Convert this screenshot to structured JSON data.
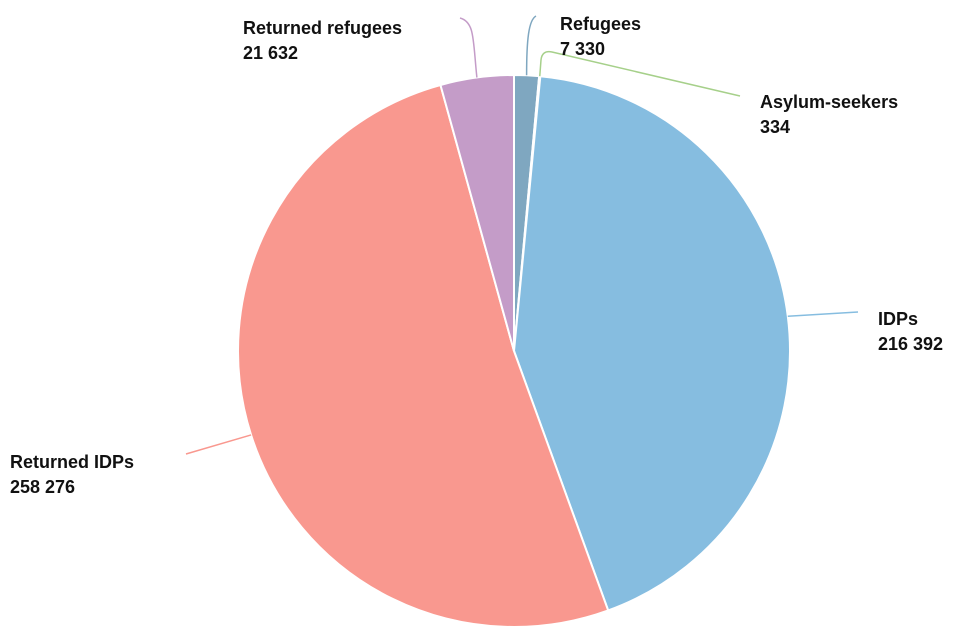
{
  "chart_data": {
    "type": "pie",
    "slices": [
      {
        "name": "Refugees",
        "value": 7330,
        "value_text": "7 330",
        "color": "#7fa7c0"
      },
      {
        "name": "Asylum-seekers",
        "value": 334,
        "value_text": "334",
        "color": "#a6d08a"
      },
      {
        "name": "IDPs",
        "value": 216392,
        "value_text": "216 392",
        "color": "#86bde0"
      },
      {
        "name": "Returned IDPs",
        "value": 258276,
        "value_text": "258 276",
        "color": "#f9988f"
      },
      {
        "name": "Returned refugees",
        "value": 21632,
        "value_text": "21 632",
        "color": "#c49cc8"
      }
    ],
    "legend": "none"
  }
}
